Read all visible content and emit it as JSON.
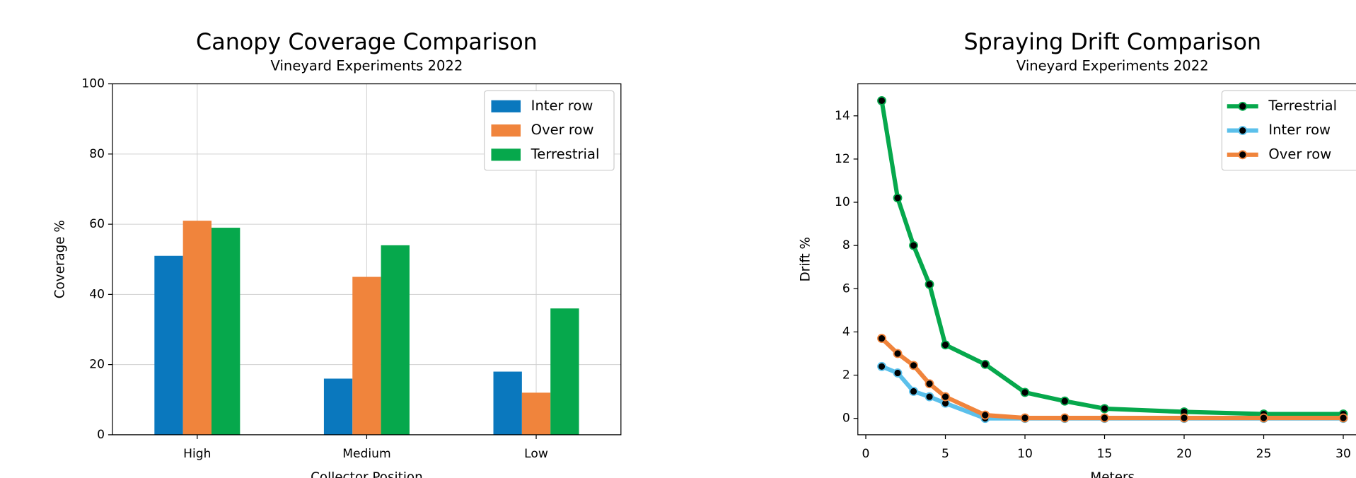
{
  "chart_data": [
    {
      "type": "bar",
      "title": "Canopy Coverage Comparison",
      "subtitle": "Vineyard Experiments 2022",
      "x_label": "Collector Position",
      "y_label": "Coverage %",
      "categories": [
        "High",
        "Medium",
        "Low"
      ],
      "series": [
        {
          "name": "Inter row",
          "color": "#0a78be",
          "values": [
            51,
            16,
            18
          ]
        },
        {
          "name": "Over row",
          "color": "#f0843c",
          "values": [
            61,
            45,
            12
          ]
        },
        {
          "name": "Terrestrial",
          "color": "#06a84c",
          "values": [
            59,
            54,
            36
          ]
        }
      ],
      "ylim": [
        0,
        100
      ],
      "yticks": [
        0,
        20,
        40,
        60,
        80,
        100
      ],
      "grid": true,
      "legend": "upper right"
    },
    {
      "type": "line",
      "title": "Spraying Drift Comparison",
      "subtitle": "Vineyard Experiments 2022",
      "x_label": "Meters",
      "y_label": "Drift %",
      "x": [
        1,
        2,
        3,
        4,
        5,
        7.5,
        10,
        12.5,
        15,
        20,
        25,
        30
      ],
      "series": [
        {
          "name": "Terrestrial",
          "color": "#06a84c",
          "values": [
            14.7,
            10.2,
            8.0,
            6.2,
            3.4,
            2.5,
            1.2,
            0.8,
            0.45,
            0.3,
            0.2,
            0.2
          ]
        },
        {
          "name": "Inter row",
          "color": "#5bc0eb",
          "values": [
            2.4,
            2.1,
            1.25,
            1.0,
            0.7,
            0,
            0,
            0,
            0,
            0,
            0,
            0
          ]
        },
        {
          "name": "Over row",
          "color": "#f0843c",
          "values": [
            3.7,
            3.0,
            2.45,
            1.6,
            1.0,
            0.15,
            0.02,
            0.02,
            0.02,
            0.02,
            0.02,
            0.02
          ]
        }
      ],
      "xlim": [
        -0.5,
        31.5
      ],
      "xticks": [
        0,
        5,
        10,
        15,
        20,
        25,
        30
      ],
      "ylim": [
        -0.76,
        15.48
      ],
      "yticks": [
        0,
        2,
        4,
        6,
        8,
        10,
        12,
        14
      ],
      "grid": false,
      "legend": "upper right"
    }
  ]
}
